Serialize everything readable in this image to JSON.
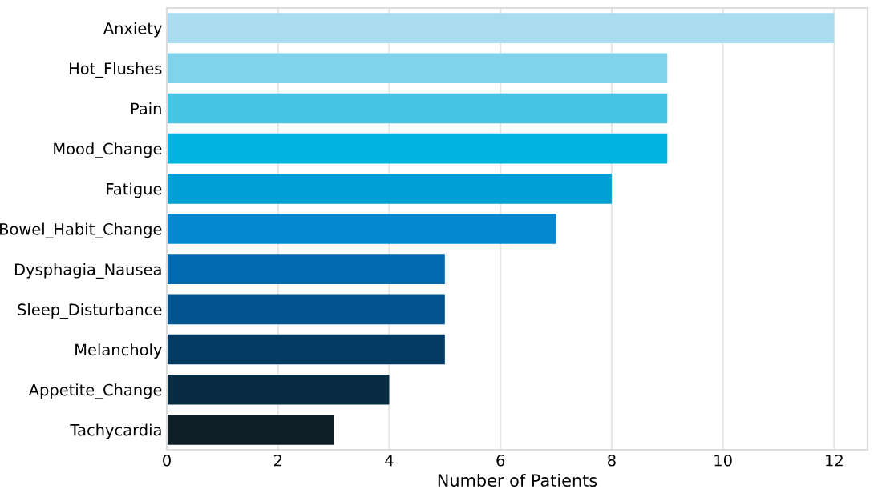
{
  "chart_data": {
    "type": "bar",
    "orientation": "horizontal",
    "xlabel": "Number of Patients",
    "categories": [
      "Anxiety",
      "Hot_Flushes",
      "Pain",
      "Mood_Change",
      "Fatigue",
      "Bowel_Habit_Change",
      "Dysphagia_Nausea",
      "Sleep_Disturbance",
      "Melancholy",
      "Appetite_Change",
      "Tachycardia"
    ],
    "values": [
      12,
      9,
      9,
      9,
      8,
      7,
      5,
      5,
      5,
      4,
      3
    ],
    "colors": [
      "#a8dcee",
      "#80d3ea",
      "#45c4e4",
      "#02b4df",
      "#00a0d6",
      "#0588d0",
      "#026bb0",
      "#02558e",
      "#023c64",
      "#072c42",
      "#101e27"
    ],
    "xlim": [
      0,
      12.6
    ],
    "xticks": [
      0,
      2,
      4,
      6,
      8,
      10,
      12
    ],
    "grid": "x"
  }
}
